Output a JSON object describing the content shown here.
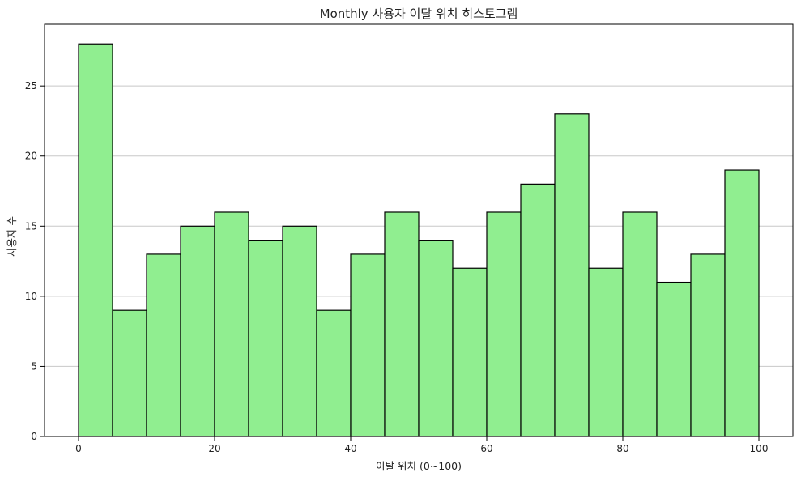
{
  "chart_data": {
    "type": "bar",
    "title": "Monthly 사용자 이탈 위치 히스토그램",
    "xlabel": "이탈 위치 (0~100)",
    "ylabel": "사용자 수",
    "bin_edges": [
      0,
      5,
      10,
      15,
      20,
      25,
      30,
      35,
      40,
      45,
      50,
      55,
      60,
      65,
      70,
      75,
      80,
      85,
      90,
      95,
      100
    ],
    "values": [
      28,
      9,
      13,
      15,
      16,
      14,
      15,
      9,
      13,
      16,
      14,
      12,
      16,
      18,
      23,
      12,
      16,
      11,
      13,
      19
    ],
    "xlim": [
      -5,
      105
    ],
    "ylim": [
      0,
      29.4
    ],
    "xticks": [
      0,
      20,
      40,
      60,
      80,
      100
    ],
    "yticks": [
      0,
      5,
      10,
      15,
      20,
      25
    ],
    "grid": "y-major",
    "colors": {
      "bar_fill": "#90ee90",
      "bar_edge": "#000000",
      "grid": "#c8c8c8",
      "axis": "#000000"
    }
  }
}
